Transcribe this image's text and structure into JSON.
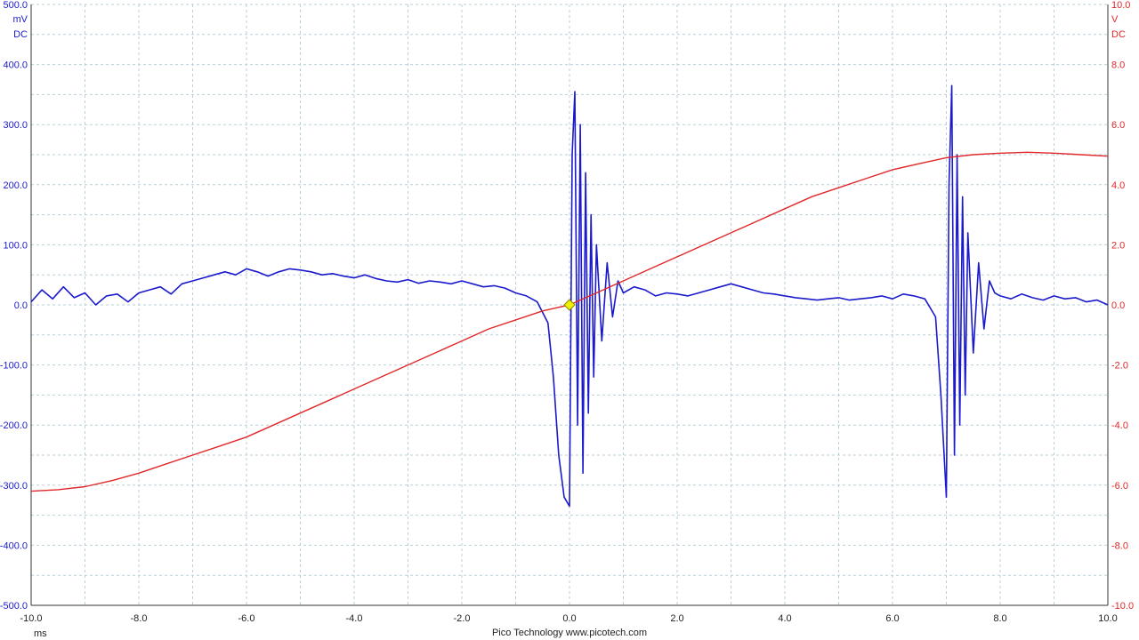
{
  "chart_data": {
    "type": "line",
    "xlabel": "ms",
    "x_range": [
      -10.0,
      10.0
    ],
    "x_ticks": [
      "-10.0",
      "-8.0",
      "-6.0",
      "-4.0",
      "-2.0",
      "0.0",
      "2.0",
      "4.0",
      "6.0",
      "8.0",
      "10.0"
    ],
    "left_axis": {
      "unit": "mV",
      "coupling": "DC",
      "range": [
        -500,
        500
      ],
      "color": "#1a1acc",
      "ticks": [
        "500.0",
        "400.0",
        "300.0",
        "200.0",
        "100.0",
        "0.0",
        "-100.0",
        "-200.0",
        "-300.0",
        "-400.0",
        "-500.0"
      ]
    },
    "right_axis": {
      "unit": "V",
      "coupling": "DC",
      "range": [
        -10,
        10
      ],
      "color": "#e0282a",
      "ticks": [
        "10.0",
        "8.0",
        "6.0",
        "4.0",
        "2.0",
        "0.0",
        "-2.0",
        "-4.0",
        "-6.0",
        "-8.0",
        "-10.0"
      ]
    },
    "grid": true,
    "trigger": {
      "x": 0.0,
      "y_mV": 0.0,
      "color": "#f0f000"
    },
    "series": [
      {
        "axis": "left",
        "color": "#1a1acc",
        "x": [
          -10,
          -9.8,
          -9.6,
          -9.4,
          -9.2,
          -9.0,
          -8.8,
          -8.6,
          -8.4,
          -8.2,
          -8.0,
          -7.8,
          -7.6,
          -7.4,
          -7.2,
          -7.0,
          -6.8,
          -6.6,
          -6.4,
          -6.2,
          -6.0,
          -5.8,
          -5.6,
          -5.4,
          -5.2,
          -5.0,
          -4.8,
          -4.6,
          -4.4,
          -4.2,
          -4.0,
          -3.8,
          -3.6,
          -3.4,
          -3.2,
          -3.0,
          -2.8,
          -2.6,
          -2.4,
          -2.2,
          -2.0,
          -1.8,
          -1.6,
          -1.4,
          -1.2,
          -1.0,
          -0.8,
          -0.6,
          -0.4,
          -0.3,
          -0.2,
          -0.1,
          0.0,
          0.05,
          0.1,
          0.15,
          0.2,
          0.25,
          0.3,
          0.35,
          0.4,
          0.45,
          0.5,
          0.6,
          0.7,
          0.8,
          0.9,
          1.0,
          1.2,
          1.4,
          1.6,
          1.8,
          2.0,
          2.2,
          2.4,
          2.6,
          2.8,
          3.0,
          3.2,
          3.4,
          3.6,
          3.8,
          4.0,
          4.2,
          4.4,
          4.6,
          4.8,
          5.0,
          5.2,
          5.4,
          5.6,
          5.8,
          6.0,
          6.2,
          6.4,
          6.6,
          6.8,
          6.9,
          7.0,
          7.05,
          7.1,
          7.15,
          7.2,
          7.25,
          7.3,
          7.35,
          7.4,
          7.5,
          7.6,
          7.7,
          7.8,
          7.9,
          8.0,
          8.2,
          8.4,
          8.6,
          8.8,
          9.0,
          9.2,
          9.4,
          9.6,
          9.8,
          10.0
        ],
        "values": [
          5,
          25,
          10,
          30,
          12,
          20,
          0,
          15,
          18,
          5,
          20,
          25,
          30,
          18,
          35,
          40,
          45,
          50,
          55,
          50,
          60,
          55,
          48,
          55,
          60,
          58,
          55,
          50,
          52,
          48,
          45,
          50,
          44,
          40,
          38,
          42,
          36,
          40,
          38,
          35,
          40,
          35,
          30,
          32,
          28,
          20,
          15,
          5,
          -30,
          -120,
          -250,
          -320,
          -335,
          250,
          355,
          -200,
          300,
          -280,
          220,
          -180,
          150,
          -120,
          100,
          -60,
          70,
          -20,
          40,
          20,
          30,
          25,
          15,
          20,
          18,
          15,
          20,
          25,
          30,
          35,
          30,
          25,
          20,
          18,
          15,
          12,
          10,
          8,
          10,
          12,
          8,
          10,
          12,
          15,
          10,
          18,
          15,
          10,
          -20,
          -150,
          -320,
          200,
          365,
          -250,
          250,
          -200,
          180,
          -150,
          120,
          -80,
          70,
          -40,
          40,
          20,
          15,
          10,
          18,
          12,
          8,
          15,
          10,
          12,
          5,
          8,
          0
        ]
      },
      {
        "axis": "right",
        "color": "#e0282a",
        "x": [
          -10,
          -9.5,
          -9.0,
          -8.5,
          -8.0,
          -7.5,
          -7.0,
          -6.5,
          -6.0,
          -5.5,
          -5.0,
          -4.5,
          -4.0,
          -3.5,
          -3.0,
          -2.5,
          -2.0,
          -1.5,
          -1.0,
          -0.5,
          0.0,
          0.5,
          1.0,
          1.5,
          2.0,
          2.5,
          3.0,
          3.5,
          4.0,
          4.5,
          5.0,
          5.5,
          6.0,
          6.5,
          7.0,
          7.5,
          8.0,
          8.5,
          9.0,
          9.5,
          10.0
        ],
        "values": [
          -6.2,
          -6.15,
          -6.05,
          -5.85,
          -5.6,
          -5.3,
          -5.0,
          -4.7,
          -4.4,
          -4.0,
          -3.6,
          -3.2,
          -2.8,
          -2.4,
          -2.0,
          -1.6,
          -1.2,
          -0.8,
          -0.5,
          -0.2,
          0.0,
          0.4,
          0.8,
          1.2,
          1.6,
          2.0,
          2.4,
          2.8,
          3.2,
          3.6,
          3.9,
          4.2,
          4.5,
          4.7,
          4.9,
          5.0,
          5.05,
          5.08,
          5.05,
          5.0,
          4.95
        ]
      }
    ],
    "footer": "Pico Technology  www.picotech.com"
  }
}
